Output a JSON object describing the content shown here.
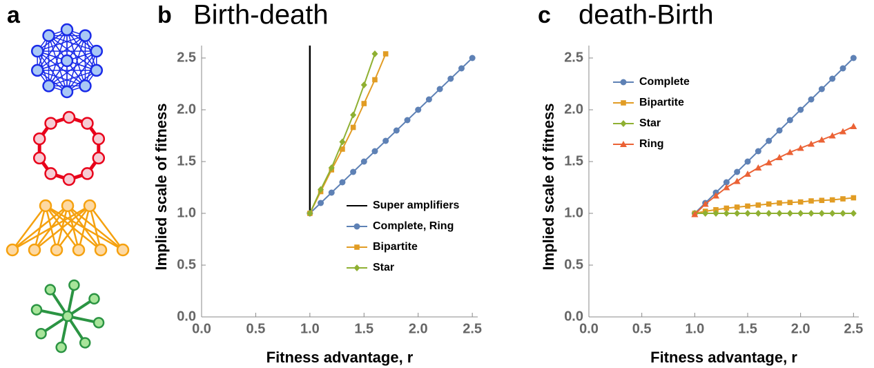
{
  "diagram": {
    "label": "a"
  },
  "chart_data": [
    {
      "type": "line",
      "panel_label": "b",
      "title": "Birth-death",
      "xlabel": "Fitness advantage, r",
      "ylabel": "Implied scale of fitness",
      "xlim": [
        0,
        2.55
      ],
      "ylim": [
        0,
        2.62
      ],
      "xticks": [
        {
          "value": 0,
          "label": "0.0"
        },
        0.5,
        {
          "value": 1,
          "label": "1.0"
        },
        1.5,
        {
          "value": 2,
          "label": "2.0"
        },
        2.5
      ],
      "yticks": [
        {
          "value": 0,
          "label": "0.0"
        },
        0.5,
        {
          "value": 1,
          "label": "1.0"
        },
        1.5,
        {
          "value": 2,
          "label": "2.0"
        },
        2.5
      ],
      "legend": "lower right",
      "series": [
        {
          "name": "Super amplifiers",
          "color": "#000000",
          "marker": "none",
          "x": [
            1,
            1
          ],
          "values": [
            1,
            2.62
          ]
        },
        {
          "name": "Complete, Ring",
          "color": "#5e81b5",
          "marker": "circle",
          "x": [
            1,
            1.1,
            1.2,
            1.3,
            1.4,
            1.5,
            1.6,
            1.7,
            1.8,
            1.9,
            2,
            2.1,
            2.2,
            2.3,
            2.4,
            2.5
          ],
          "values": [
            1,
            1.1,
            1.2,
            1.3,
            1.4,
            1.5,
            1.6,
            1.7,
            1.8,
            1.9,
            2,
            2.1,
            2.2,
            2.3,
            2.4,
            2.5
          ]
        },
        {
          "name": "Bipartite",
          "color": "#e19c24",
          "marker": "square",
          "x": [
            1,
            1.1,
            1.2,
            1.3,
            1.4,
            1.5,
            1.6,
            1.7
          ],
          "values": [
            1,
            1.21,
            1.42,
            1.62,
            1.83,
            2.06,
            2.29,
            2.54
          ]
        },
        {
          "name": "Star",
          "color": "#8fb032",
          "marker": "diamond",
          "x": [
            1,
            1.1,
            1.2,
            1.3,
            1.4,
            1.5,
            1.6
          ],
          "values": [
            1,
            1.23,
            1.44,
            1.69,
            1.95,
            2.24,
            2.54
          ]
        }
      ]
    },
    {
      "type": "line",
      "panel_label": "c",
      "title": "death-Birth",
      "xlabel": "Fitness advantage, r",
      "ylabel": "Implied scale of fitness",
      "xlim": [
        0,
        2.55
      ],
      "ylim": [
        0,
        2.62
      ],
      "xticks": [
        {
          "value": 0,
          "label": "0.0"
        },
        0.5,
        {
          "value": 1,
          "label": "1.0"
        },
        1.5,
        {
          "value": 2,
          "label": "2.0"
        },
        2.5
      ],
      "yticks": [
        {
          "value": 0,
          "label": "0.0"
        },
        0.5,
        {
          "value": 1,
          "label": "1.0"
        },
        1.5,
        {
          "value": 2,
          "label": "2.0"
        },
        2.5
      ],
      "legend": "upper left",
      "series": [
        {
          "name": "Complete",
          "color": "#5e81b5",
          "marker": "circle",
          "x": [
            1,
            1.1,
            1.2,
            1.3,
            1.4,
            1.5,
            1.6,
            1.7,
            1.8,
            1.9,
            2,
            2.1,
            2.2,
            2.3,
            2.4,
            2.5
          ],
          "values": [
            1,
            1.1,
            1.2,
            1.3,
            1.4,
            1.5,
            1.6,
            1.7,
            1.8,
            1.9,
            2,
            2.1,
            2.2,
            2.3,
            2.4,
            2.5
          ]
        },
        {
          "name": "Bipartite",
          "color": "#e19c24",
          "marker": "square",
          "x": [
            1,
            1.1,
            1.2,
            1.3,
            1.4,
            1.5,
            1.6,
            1.7,
            1.8,
            1.9,
            2,
            2.1,
            2.2,
            2.3,
            2.4,
            2.5
          ],
          "values": [
            1,
            1.02,
            1.035,
            1.05,
            1.06,
            1.07,
            1.08,
            1.09,
            1.1,
            1.105,
            1.11,
            1.12,
            1.125,
            1.13,
            1.14,
            1.15
          ]
        },
        {
          "name": "Star",
          "color": "#8fb032",
          "marker": "diamond",
          "x": [
            1,
            1.1,
            1.2,
            1.3,
            1.4,
            1.5,
            1.6,
            1.7,
            1.8,
            1.9,
            2,
            2.1,
            2.2,
            2.3,
            2.4,
            2.5
          ],
          "values": [
            1,
            1,
            1,
            1,
            1,
            1,
            1,
            1,
            1,
            1,
            1,
            1,
            1,
            1,
            1,
            1
          ]
        },
        {
          "name": "Ring",
          "color": "#eb6235",
          "marker": "triangle",
          "x": [
            1,
            1.1,
            1.2,
            1.3,
            1.4,
            1.5,
            1.6,
            1.7,
            1.8,
            1.9,
            2,
            2.1,
            2.2,
            2.3,
            2.4,
            2.5
          ],
          "values": [
            0.99,
            1.09,
            1.17,
            1.25,
            1.31,
            1.38,
            1.44,
            1.49,
            1.54,
            1.59,
            1.63,
            1.67,
            1.71,
            1.75,
            1.79,
            1.84
          ]
        }
      ]
    }
  ]
}
